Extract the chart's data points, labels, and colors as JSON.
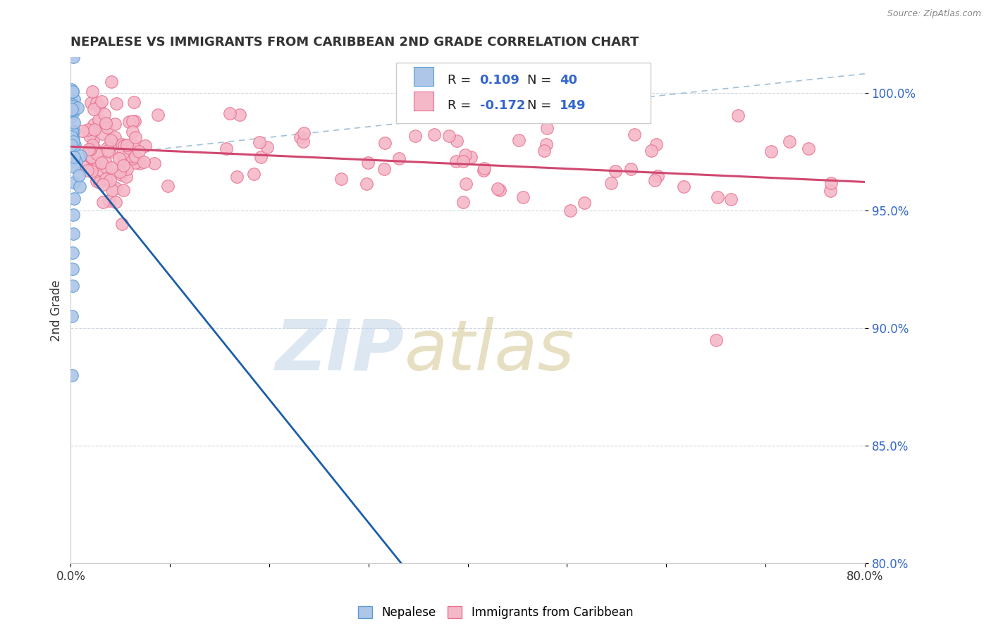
{
  "title": "NEPALESE VS IMMIGRANTS FROM CARIBBEAN 2ND GRADE CORRELATION CHART",
  "source_text": "Source: ZipAtlas.com",
  "ylabel": "2nd Grade",
  "xlim": [
    0.0,
    80.0
  ],
  "ylim": [
    80.0,
    101.5
  ],
  "yticks": [
    80.0,
    85.0,
    90.0,
    95.0,
    100.0
  ],
  "ytick_labels": [
    "80.0%",
    "85.0%",
    "90.0%",
    "95.0%",
    "100.0%"
  ],
  "nepalese_color": "#aec6e8",
  "caribbean_color": "#f5b8c8",
  "nepalese_edge": "#5b9bd5",
  "caribbean_edge": "#e87090",
  "trend_nepalese_color": "#1a5fa8",
  "trend_caribbean_color": "#d04870",
  "trend_dashed_color": "#90b4d0",
  "background_color": "#ffffff",
  "R_nepalese": 0.109,
  "N_nepalese": 40,
  "R_caribbean": -0.172,
  "N_caribbean": 149,
  "legend_text_color": "#3366cc",
  "legend_R_label_color": "#222222",
  "watermark_zip_color": "#c0d4e8",
  "watermark_atlas_color": "#c8b878"
}
